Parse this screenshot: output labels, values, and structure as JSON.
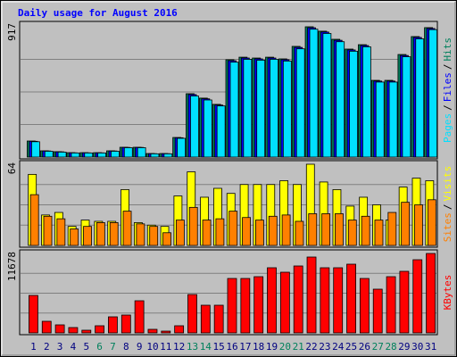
{
  "chart_data": [
    {
      "type": "bar",
      "title": "Daily usage for August 2016",
      "ylim": [
        0,
        917
      ],
      "separator": "/",
      "series": [
        {
          "name": "Pages",
          "color": "#00e0ff",
          "values": [
            108,
            41,
            35,
            29,
            29,
            29,
            41,
            66,
            66,
            23,
            23,
            132,
            430,
            402,
            360,
            668,
            688,
            682,
            688,
            676,
            762,
            900,
            870,
            812,
            745,
            776,
            528,
            528,
            706,
            832,
            897
          ]
        },
        {
          "name": "Files",
          "color": "#0000ff",
          "values": [
            111,
            43,
            37,
            30,
            30,
            30,
            43,
            68,
            68,
            24,
            24,
            136,
            440,
            410,
            366,
            678,
            697,
            691,
            697,
            685,
            772,
            910,
            880,
            822,
            754,
            785,
            535,
            535,
            715,
            842,
            905
          ]
        },
        {
          "name": "Hits",
          "color": "#00805c",
          "values": [
            113,
            44,
            38,
            31,
            31,
            31,
            44,
            69,
            69,
            25,
            25,
            138,
            446,
            415,
            371,
            685,
            703,
            697,
            703,
            691,
            779,
            917,
            886,
            829,
            760,
            791,
            540,
            540,
            722,
            848,
            911
          ]
        }
      ]
    },
    {
      "type": "bar",
      "ylim": [
        0,
        64
      ],
      "separator": "/",
      "series": [
        {
          "name": "Sites",
          "color": "#ff8000",
          "values": [
            40,
            23,
            21,
            13,
            15,
            18,
            18,
            27,
            17,
            15,
            10,
            20,
            30,
            20,
            21,
            27,
            22,
            20,
            23,
            24,
            19,
            25,
            25,
            25,
            20,
            23,
            20,
            26,
            34,
            32,
            36
          ]
        },
        {
          "name": "Visits",
          "color": "#ffff00",
          "values": [
            56,
            24,
            26,
            15,
            20,
            19,
            19,
            44,
            18,
            16,
            15,
            39,
            58,
            38,
            45,
            41,
            48,
            48,
            48,
            51,
            48,
            64,
            50,
            44,
            31,
            38,
            32,
            20,
            46,
            53,
            51
          ]
        }
      ]
    },
    {
      "type": "bar",
      "ylim": [
        0,
        11678
      ],
      "series": [
        {
          "name": "KBytes",
          "color": "#ff0000",
          "values": [
            5511,
            1706,
            1181,
            787,
            394,
            1050,
            2362,
            2624,
            4724,
            525,
            262,
            1050,
            5642,
            4068,
            4068,
            8004,
            8004,
            8266,
            9579,
            8922,
            9841,
            11153,
            9579,
            9579,
            10103,
            8004,
            6429,
            8266,
            9054,
            10759,
            11678
          ]
        }
      ],
      "categories": [
        "1",
        "2",
        "3",
        "4",
        "5",
        "6",
        "7",
        "8",
        "9",
        "10",
        "11",
        "12",
        "13",
        "14",
        "15",
        "16",
        "17",
        "18",
        "19",
        "20",
        "21",
        "22",
        "23",
        "24",
        "25",
        "26",
        "27",
        "28",
        "29",
        "30",
        "31"
      ],
      "category_colors": [
        "#000080",
        "#000080",
        "#000080",
        "#000080",
        "#000080",
        "#00805c",
        "#00805c",
        "#000080",
        "#000080",
        "#000080",
        "#000080",
        "#000080",
        "#00805c",
        "#00805c",
        "#000080",
        "#000080",
        "#000080",
        "#000080",
        "#000080",
        "#00805c",
        "#00805c",
        "#000080",
        "#000080",
        "#000080",
        "#000080",
        "#000080",
        "#00805c",
        "#00805c",
        "#000080",
        "#000080",
        "#000080"
      ]
    }
  ]
}
